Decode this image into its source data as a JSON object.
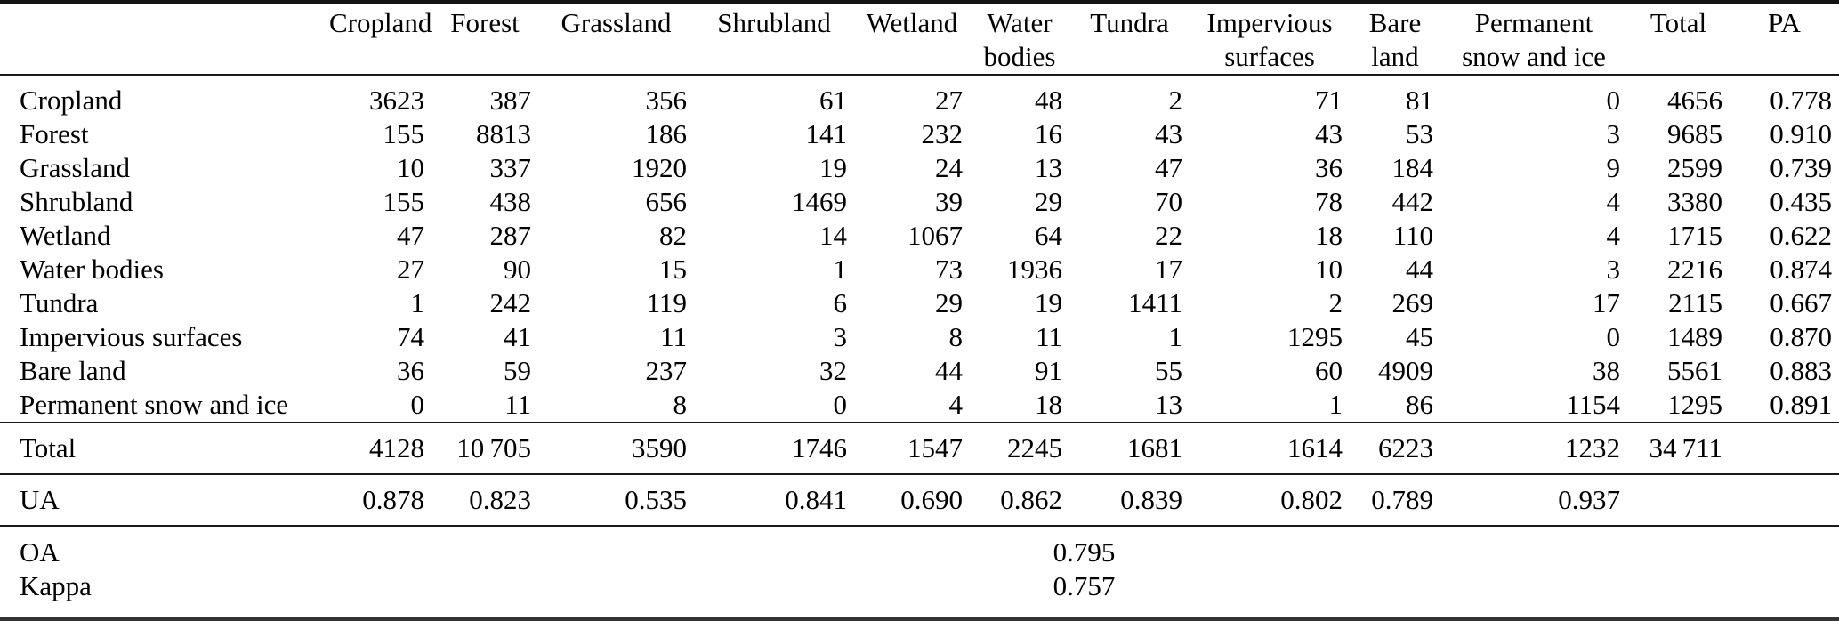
{
  "colors": {
    "text": "#000000",
    "background": "#ffffff",
    "rule": "#1a1a1a"
  },
  "matrix": {
    "header": {
      "corner": "",
      "cols": [
        {
          "l1": "Cropland",
          "l2": ""
        },
        {
          "l1": "Forest",
          "l2": ""
        },
        {
          "l1": "Grassland",
          "l2": ""
        },
        {
          "l1": "Shrubland",
          "l2": ""
        },
        {
          "l1": "Wetland",
          "l2": ""
        },
        {
          "l1": "Water",
          "l2": "bodies"
        },
        {
          "l1": "Tundra",
          "l2": ""
        },
        {
          "l1": "Impervious",
          "l2": "surfaces"
        },
        {
          "l1": "Bare",
          "l2": "land"
        },
        {
          "l1": "Permanent",
          "l2": "snow and ice"
        },
        {
          "l1": "Total",
          "l2": ""
        },
        {
          "l1": "PA",
          "l2": ""
        }
      ]
    },
    "rows": [
      {
        "label": "Cropland",
        "values": [
          "3623",
          "387",
          "356",
          "61",
          "27",
          "48",
          "2",
          "71",
          "81",
          "0",
          "4656",
          "0.778"
        ]
      },
      {
        "label": "Forest",
        "values": [
          "155",
          "8813",
          "186",
          "141",
          "232",
          "16",
          "43",
          "43",
          "53",
          "3",
          "9685",
          "0.910"
        ]
      },
      {
        "label": "Grassland",
        "values": [
          "10",
          "337",
          "1920",
          "19",
          "24",
          "13",
          "47",
          "36",
          "184",
          "9",
          "2599",
          "0.739"
        ]
      },
      {
        "label": "Shrubland",
        "values": [
          "155",
          "438",
          "656",
          "1469",
          "39",
          "29",
          "70",
          "78",
          "442",
          "4",
          "3380",
          "0.435"
        ]
      },
      {
        "label": "Wetland",
        "values": [
          "47",
          "287",
          "82",
          "14",
          "1067",
          "64",
          "22",
          "18",
          "110",
          "4",
          "1715",
          "0.622"
        ]
      },
      {
        "label": "Water bodies",
        "values": [
          "27",
          "90",
          "15",
          "1",
          "73",
          "1936",
          "17",
          "10",
          "44",
          "3",
          "2216",
          "0.874"
        ]
      },
      {
        "label": "Tundra",
        "values": [
          "1",
          "242",
          "119",
          "6",
          "29",
          "19",
          "1411",
          "2",
          "269",
          "17",
          "2115",
          "0.667"
        ]
      },
      {
        "label": "Impervious surfaces",
        "values": [
          "74",
          "41",
          "11",
          "3",
          "8",
          "11",
          "1",
          "1295",
          "45",
          "0",
          "1489",
          "0.870"
        ]
      },
      {
        "label": "Bare land",
        "values": [
          "36",
          "59",
          "237",
          "32",
          "44",
          "91",
          "55",
          "60",
          "4909",
          "38",
          "5561",
          "0.883"
        ]
      },
      {
        "label": "Permanent snow and ice",
        "values": [
          "0",
          "11",
          "8",
          "0",
          "4",
          "18",
          "13",
          "1",
          "86",
          "1154",
          "1295",
          "0.891"
        ]
      }
    ],
    "total_row": {
      "label": "Total",
      "values": [
        "4128",
        "10 705",
        "3590",
        "1746",
        "1547",
        "2245",
        "1681",
        "1614",
        "6223",
        "1232",
        "34 711",
        ""
      ]
    },
    "ua_row": {
      "label": "UA",
      "values": [
        "0.878",
        "0.823",
        "0.535",
        "0.841",
        "0.690",
        "0.862",
        "0.839",
        "0.802",
        "0.789",
        "0.937",
        "",
        ""
      ]
    },
    "oa_row": {
      "label": "OA",
      "value": "0.795"
    },
    "kappa_row": {
      "label": "Kappa",
      "value": "0.757"
    }
  }
}
